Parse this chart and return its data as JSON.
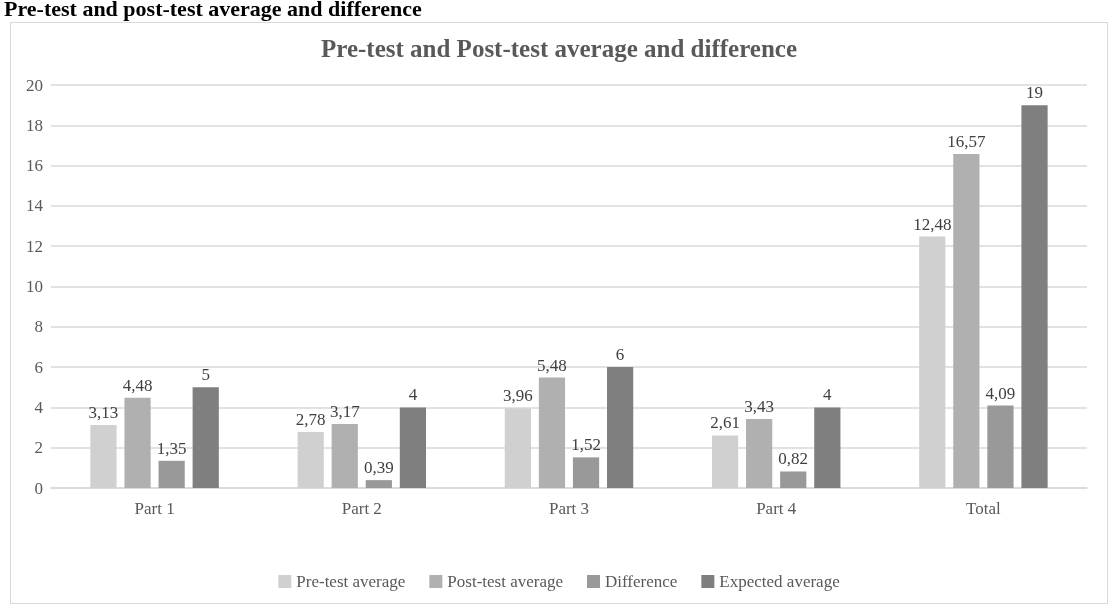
{
  "chart_data": {
    "type": "bar",
    "title": "Pre-test and Post-test average and difference",
    "annotations": [
      "Pre-test and post-test average and difference"
    ],
    "categories": [
      "Part 1",
      "Part 2",
      "Part 3",
      "Part 4",
      "Total"
    ],
    "series": [
      {
        "name": "Pre-test average",
        "color": "#d0d0d0",
        "values": [
          3.13,
          2.78,
          3.96,
          2.61,
          12.48
        ],
        "value_labels": [
          "3,13",
          "2,78",
          "3,96",
          "2,61",
          "12,48"
        ]
      },
      {
        "name": "Post-test average",
        "color": "#b0b0b0",
        "values": [
          4.48,
          3.17,
          5.48,
          3.43,
          16.57
        ],
        "value_labels": [
          "4,48",
          "3,17",
          "5,48",
          "3,43",
          "16,57"
        ]
      },
      {
        "name": "Difference",
        "color": "#999999",
        "values": [
          1.35,
          0.39,
          1.52,
          0.82,
          4.09
        ],
        "value_labels": [
          "1,35",
          "0,39",
          "1,52",
          "0,82",
          "4,09"
        ]
      },
      {
        "name": "Expected average",
        "color": "#7f7f7f",
        "values": [
          5,
          4,
          6,
          4,
          19
        ],
        "value_labels": [
          "5",
          "4",
          "6",
          "4",
          "19"
        ]
      }
    ],
    "ylim": [
      0,
      20
    ],
    "yticks": [
      0,
      2,
      4,
      6,
      8,
      10,
      12,
      14,
      16,
      18,
      20
    ],
    "grid": "y",
    "legend": "bottom"
  }
}
